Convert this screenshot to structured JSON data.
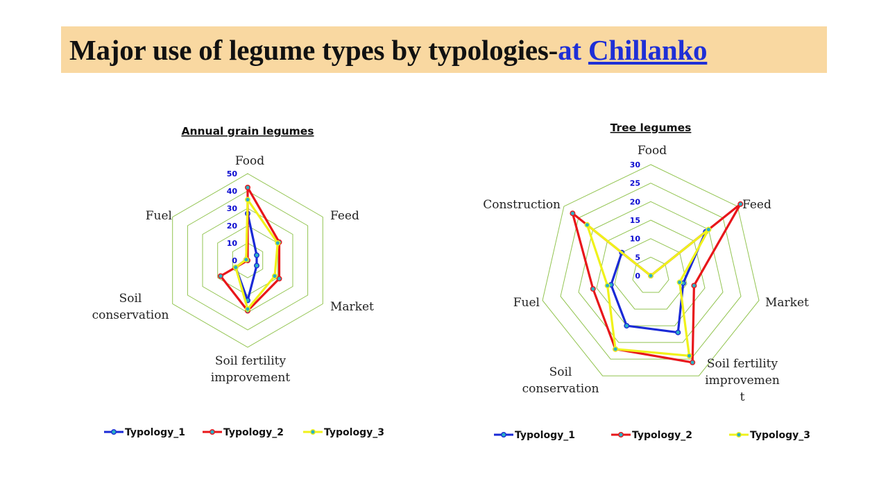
{
  "slide": {
    "title_main": "Major use of legume types by typologies-",
    "title_at": "at ",
    "title_place": "Chillanko"
  },
  "colors": {
    "title_bg": "#f9d8a1",
    "grid": "#92c450",
    "tick": "#0b0bd0",
    "marker_fill": "#2ab0c4"
  },
  "chart_data": [
    {
      "type": "radar",
      "title": "Annual grain legumes",
      "axes": [
        "Food",
        "Feed",
        "Market",
        "Soil fertility improvement",
        "Soil conservation",
        "Fuel"
      ],
      "tick_labels": [
        "0",
        "10",
        "20",
        "30",
        "40",
        "50"
      ],
      "rmax": 50,
      "grid": true,
      "legend_position": "bottom",
      "series": [
        {
          "name": "Typology_1",
          "color": "#1a2ad6",
          "values": [
            27,
            6,
            6,
            23,
            8,
            1
          ]
        },
        {
          "name": "Typology_2",
          "color": "#e8161a",
          "values": [
            42,
            21,
            21,
            29,
            18,
            0
          ]
        },
        {
          "name": "Typology_3",
          "color": "#f0f21a",
          "values": [
            35,
            20,
            18,
            28,
            8,
            1
          ]
        }
      ]
    },
    {
      "type": "radar",
      "title": "Tree legumes",
      "axes": [
        "Food",
        "Feed",
        "Market",
        "Soil fertility improvement",
        "Fuel",
        "Soil conservation",
        "Construction"
      ],
      "display_labels": [
        "Food",
        "Feed",
        "Market",
        "Soil fertility improvemen t",
        "Fuel",
        "Soil conservation",
        "Construction"
      ],
      "tick_labels": [
        "0",
        "5",
        "10",
        "15",
        "20",
        "25",
        "30"
      ],
      "rmax": 30,
      "grid": true,
      "legend_position": "bottom",
      "series": [
        {
          "name": "Typology_1",
          "color": "#1a2ad6",
          "values": [
            0,
            19,
            9,
            17,
            15,
            11,
            10
          ]
        },
        {
          "name": "Typology_2",
          "color": "#e8161a",
          "values": [
            0,
            31,
            12,
            26,
            22,
            16,
            27
          ]
        },
        {
          "name": "Typology_3",
          "color": "#f0f21a",
          "values": [
            0,
            20,
            8,
            24,
            22,
            12,
            22
          ]
        }
      ]
    }
  ]
}
